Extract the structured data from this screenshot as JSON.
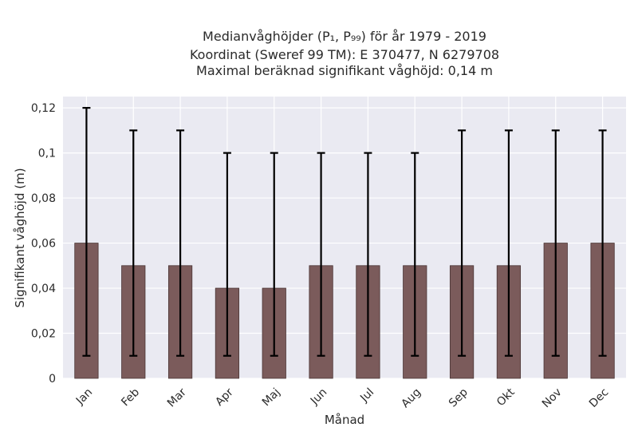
{
  "chart_data": {
    "type": "bar",
    "title_lines": [
      "Medianvåghöjder (P₁, P₉₉) för år 1979 - 2019",
      "Koordinat (Sweref 99 TM): E 370477, N 6279708",
      "Maximal beräknad signifikant våghöjd: 0,14 m"
    ],
    "xlabel": "Månad",
    "ylabel": "Signifikant våghöjd (m)",
    "categories": [
      "Jan",
      "Feb",
      "Mar",
      "Apr",
      "Maj",
      "Jun",
      "Jul",
      "Aug",
      "Sep",
      "Okt",
      "Nov",
      "Dec"
    ],
    "values": [
      0.06,
      0.05,
      0.05,
      0.04,
      0.04,
      0.05,
      0.05,
      0.05,
      0.05,
      0.05,
      0.06,
      0.06
    ],
    "p1": [
      0.01,
      0.01,
      0.01,
      0.01,
      0.01,
      0.01,
      0.01,
      0.01,
      0.01,
      0.01,
      0.01,
      0.01
    ],
    "p99": [
      0.12,
      0.11,
      0.11,
      0.1,
      0.1,
      0.1,
      0.1,
      0.1,
      0.11,
      0.11,
      0.11,
      0.11
    ],
    "ylim": [
      0,
      0.125
    ],
    "yticks": [
      0,
      0.02,
      0.04,
      0.06,
      0.08,
      0.1,
      0.12
    ],
    "ytick_labels": [
      "0",
      "0,02",
      "0,04",
      "0,06",
      "0,08",
      "0,1",
      "0,12"
    ],
    "grid": true,
    "bar_color": "#7b5b5b",
    "bar_edge_color": "#4a3535",
    "error_color": "#000000",
    "plot_background": "#eaeaf2"
  }
}
